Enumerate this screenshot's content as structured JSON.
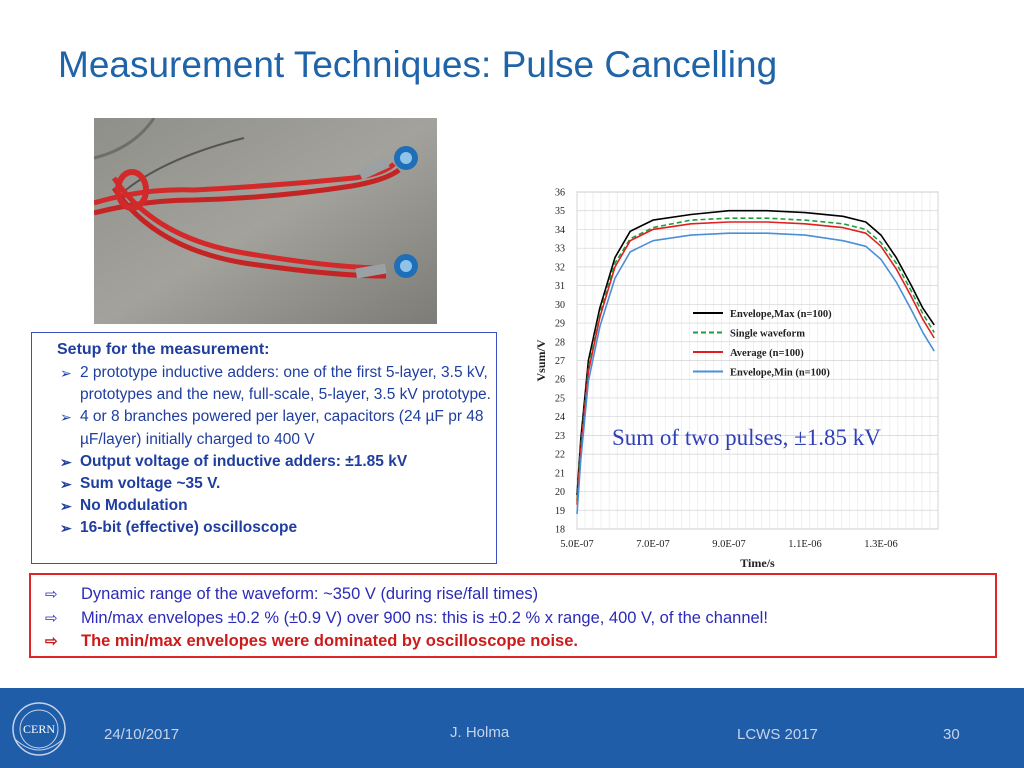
{
  "slide": {
    "title": "Measurement Techniques: Pulse Cancelling"
  },
  "setup": {
    "heading": "Setup for the measurement:",
    "items": [
      {
        "text": "2 prototype inductive adders: one of the first 5-layer, 3.5 kV, prototypes and the new, full-scale, 5-layer, 3.5 kV prototype.",
        "bold": false
      },
      {
        "text": "4 or 8 branches powered  per layer, capacitors (24 µF pr 48 µF/layer) initially charged to 400 V",
        "bold": false
      },
      {
        "text": "Output voltage of inductive adders: ±1.85 kV",
        "bold": true
      },
      {
        "text": "Sum voltage ~35 V.",
        "bold": true
      },
      {
        "text": "No Modulation",
        "bold": true
      },
      {
        "text": "16-bit (effective) oscilloscope",
        "bold": true
      }
    ]
  },
  "results": {
    "items": [
      {
        "text": "Dynamic range of the waveform: ~350 V (during rise/fall times)",
        "strong": false
      },
      {
        "text": "Min/max envelopes ±0.2 % (±0.9 V) over 900 ns: this is ±0.2 % x range, 400 V, of the channel!",
        "strong": false
      },
      {
        "text": "The min/max envelopes were dominated by oscilloscope noise.",
        "strong": true
      }
    ]
  },
  "chart_data": {
    "type": "line",
    "ylabel": "Vsum/V",
    "xlabel": "Time/s",
    "annotation": "Sum of two pulses, ±1.85 kV",
    "xlim": [
      5e-07,
      1.45e-06
    ],
    "ylim": [
      18,
      36
    ],
    "xticks": [
      5e-07,
      7e-07,
      9e-07,
      1.1e-06,
      1.3e-06
    ],
    "xtick_labels": [
      "5.0E-07",
      "7.0E-07",
      "9.0E-07",
      "1.1E-06",
      "1.3E-06"
    ],
    "yticks": [
      18,
      19,
      20,
      21,
      22,
      23,
      24,
      25,
      26,
      27,
      28,
      29,
      30,
      31,
      32,
      33,
      34,
      35,
      36
    ],
    "grid": true,
    "legend_position": "right",
    "x": [
      5e-07,
      5.1e-07,
      5.3e-07,
      5.6e-07,
      6e-07,
      6.4e-07,
      7e-07,
      8e-07,
      9e-07,
      1e-06,
      1.1e-06,
      1.2e-06,
      1.26e-06,
      1.3e-06,
      1.34e-06,
      1.38e-06,
      1.41e-06,
      1.44e-06
    ],
    "series": [
      {
        "name": "Envelope,Max (n=100)",
        "color": "#000000",
        "dash": "solid",
        "values": [
          19.8,
          22.8,
          27.0,
          29.8,
          32.5,
          33.9,
          34.5,
          34.8,
          35.0,
          35.0,
          34.9,
          34.7,
          34.4,
          33.7,
          32.5,
          31.0,
          29.8,
          28.9
        ]
      },
      {
        "name": "Single waveform",
        "color": "#1e9e3e",
        "dash": "dashed",
        "values": [
          19.5,
          22.4,
          26.6,
          29.5,
          32.2,
          33.5,
          34.1,
          34.5,
          34.6,
          34.6,
          34.5,
          34.3,
          34.0,
          33.3,
          32.2,
          30.7,
          29.5,
          28.5
        ]
      },
      {
        "name": "Average (n=100)",
        "color": "#e02020",
        "dash": "solid",
        "values": [
          19.3,
          22.2,
          26.4,
          29.3,
          32.0,
          33.4,
          34.0,
          34.3,
          34.4,
          34.4,
          34.3,
          34.1,
          33.8,
          33.1,
          31.9,
          30.4,
          29.2,
          28.2
        ]
      },
      {
        "name": "Envelope,Min (n=100)",
        "color": "#4a8fd8",
        "dash": "solid",
        "values": [
          18.8,
          21.7,
          25.9,
          28.8,
          31.4,
          32.8,
          33.4,
          33.7,
          33.8,
          33.8,
          33.7,
          33.4,
          33.1,
          32.4,
          31.2,
          29.7,
          28.5,
          27.5
        ]
      }
    ]
  },
  "footer": {
    "date": "24/10/2017",
    "author": "J. Holma",
    "event": "LCWS 2017",
    "page": "30",
    "logo_text": "CERN"
  }
}
